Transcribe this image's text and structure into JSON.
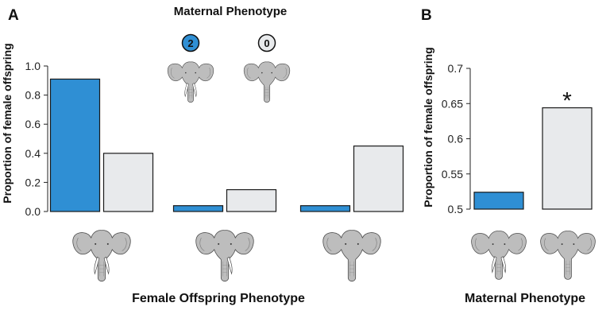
{
  "colors": {
    "blue": "#2f8fd4",
    "gray": "#e8eaec",
    "edge": "#1a1a1a"
  },
  "chart_data": [
    {
      "panel": "A",
      "type": "bar",
      "title": "Maternal Phenotype",
      "xlabel": "Female Offspring Phenotype",
      "ylabel": "Proportion of female offspring",
      "ylim": [
        0,
        1.0
      ],
      "yticks": [
        "0.0",
        "0.2",
        "0.4",
        "0.6",
        "0.8",
        "1.0"
      ],
      "categories": [
        "2 tusks",
        "1 tusk",
        "0 tusks"
      ],
      "legend": [
        {
          "badge": "2",
          "icon": "elephant-two-tusks-icon",
          "color": "#2f8fd4"
        },
        {
          "badge": "0",
          "icon": "elephant-tuskless-icon",
          "color": "#e8eaec"
        }
      ],
      "series": [
        {
          "values": [
            0.91,
            0.04,
            0.04
          ]
        },
        {
          "values": [
            0.4,
            0.15,
            0.45
          ]
        }
      ]
    },
    {
      "panel": "B",
      "type": "bar",
      "xlabel": "Maternal Phenotype",
      "ylabel": "Proportion of female offspring",
      "ylim": [
        0.5,
        0.7
      ],
      "yticks": [
        "0.5",
        "0.55",
        "0.6",
        "0.65",
        "0.7"
      ],
      "categories": [
        "tusked",
        "tuskless"
      ],
      "values": [
        0.524,
        0.644
      ],
      "annotation": "*"
    }
  ]
}
